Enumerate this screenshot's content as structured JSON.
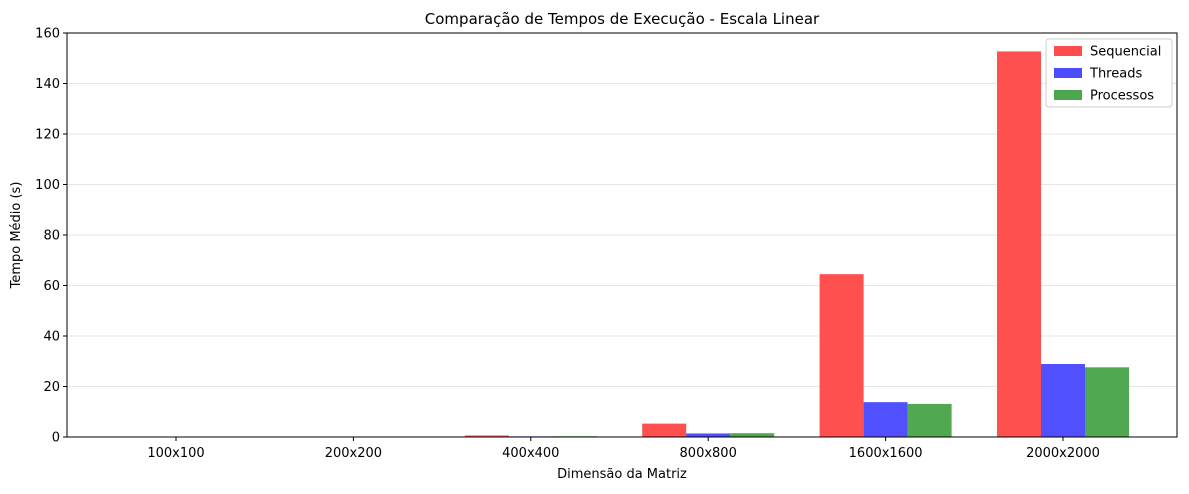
{
  "chart_data": {
    "type": "bar",
    "title": "Comparação de Tempos de Execução - Escala Linear",
    "xlabel": "Dimensão da Matriz",
    "ylabel": "Tempo Médio (s)",
    "categories": [
      "100x100",
      "200x200",
      "400x400",
      "800x800",
      "1600x1600",
      "2000x2000"
    ],
    "series": [
      {
        "name": "Sequencial",
        "color": "#ff4c4c",
        "values": [
          0.01,
          0.08,
          0.6,
          5.3,
          64.5,
          152.7
        ]
      },
      {
        "name": "Threads",
        "color": "#4c4cff",
        "values": [
          0.01,
          0.03,
          0.25,
          1.4,
          13.8,
          28.9
        ]
      },
      {
        "name": "Processos",
        "color": "#4ca64c",
        "values": [
          0.02,
          0.04,
          0.3,
          1.5,
          13.1,
          27.6
        ]
      }
    ],
    "ylim": [
      0,
      160
    ],
    "yticks": [
      0,
      20,
      40,
      60,
      80,
      100,
      120,
      140,
      160
    ],
    "grid": "y",
    "legend": "top-right"
  }
}
